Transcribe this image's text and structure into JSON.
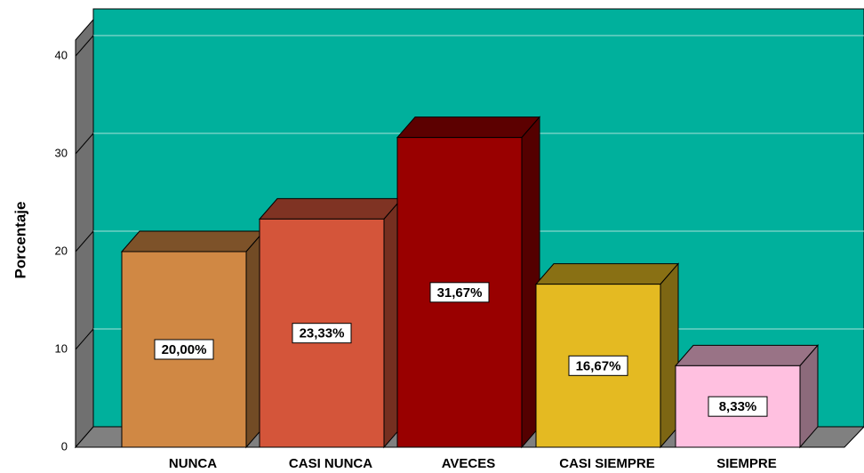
{
  "chart_data": {
    "type": "bar",
    "y_axis_label": "Porcentaje",
    "categories": [
      "NUNCA",
      "CASI NUNCA",
      "AVECES",
      "CASI SIEMPRE",
      "SIEMPRE"
    ],
    "values": [
      20,
      23.33,
      31.67,
      16.67,
      8.33
    ],
    "value_labels": [
      "20,00%",
      "23,33%",
      "31,67%",
      "16,67%",
      "8,33%"
    ],
    "colors": [
      "#d08844",
      "#d4553a",
      "#990000",
      "#e4ba22",
      "#ffc0e0"
    ],
    "ylim": [
      0,
      42
    ],
    "yticks": [
      0,
      10,
      20,
      30,
      40
    ],
    "grid": true
  }
}
